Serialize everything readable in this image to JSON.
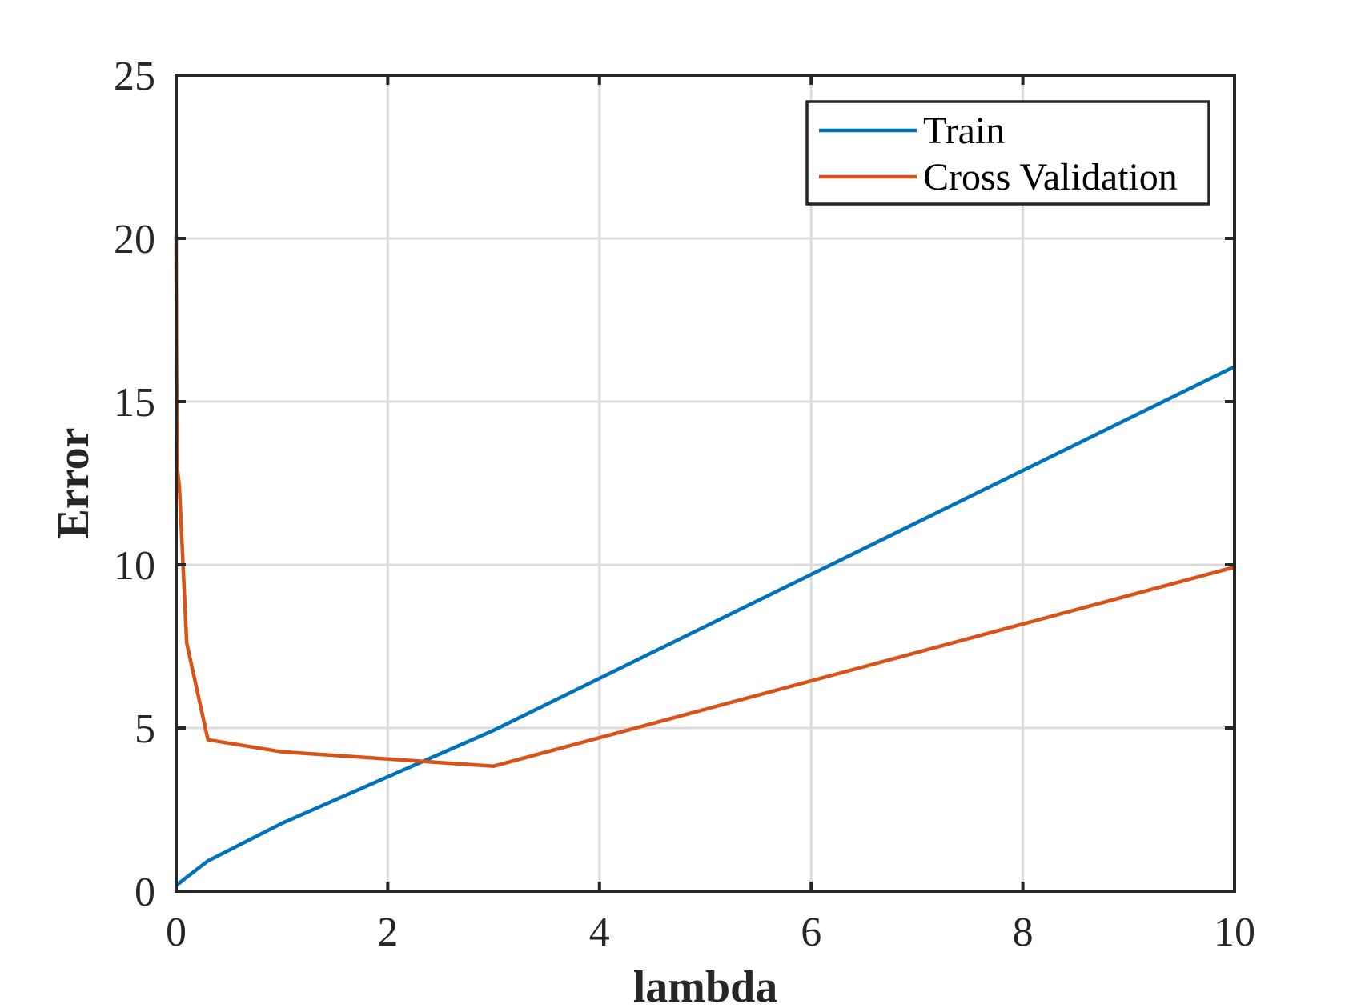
{
  "chart_data": {
    "type": "line",
    "title": "",
    "xlabel": "lambda",
    "ylabel": "Error",
    "xlim": [
      0,
      10
    ],
    "ylim": [
      0,
      25
    ],
    "xticks": [
      0,
      2,
      4,
      6,
      8,
      10
    ],
    "yticks": [
      0,
      5,
      10,
      15,
      20,
      25
    ],
    "xtick_labels": [
      "0",
      "2",
      "4",
      "6",
      "8",
      "10"
    ],
    "ytick_labels": [
      "0",
      "5",
      "10",
      "15",
      "20",
      "25"
    ],
    "grid": true,
    "legend_position": "top-right",
    "series": [
      {
        "name": "Train",
        "color": "#0072BD",
        "x": [
          0,
          0.001,
          0.003,
          0.01,
          0.03,
          0.1,
          0.3,
          1,
          3,
          10
        ],
        "y": [
          0.17,
          0.17,
          0.18,
          0.2,
          0.25,
          0.43,
          0.93,
          2.08,
          4.93,
          16.07
        ]
      },
      {
        "name": "Cross Validation",
        "color": "#D95319",
        "x": [
          0,
          0.001,
          0.003,
          0.01,
          0.03,
          0.1,
          0.3,
          1,
          3,
          10
        ],
        "y": [
          20.1,
          18.9,
          16.5,
          13.0,
          12.4,
          7.6,
          4.64,
          4.27,
          3.83,
          9.93
        ]
      }
    ]
  }
}
